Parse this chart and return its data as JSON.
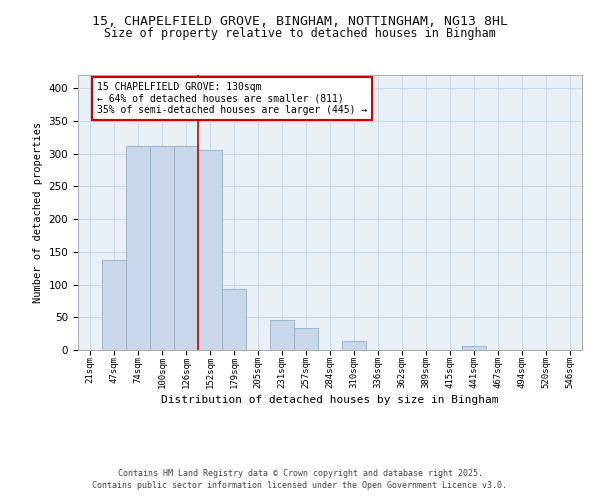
{
  "title_line1": "15, CHAPELFIELD GROVE, BINGHAM, NOTTINGHAM, NG13 8HL",
  "title_line2": "Size of property relative to detached houses in Bingham",
  "xlabel": "Distribution of detached houses by size in Bingham",
  "ylabel": "Number of detached properties",
  "bar_color": "#c8d8ea",
  "bar_edgecolor": "#8ab0cc",
  "grid_color": "#c8d8e8",
  "background_color": "#eaf0f8",
  "bin_labels": [
    "21sqm",
    "47sqm",
    "74sqm",
    "100sqm",
    "126sqm",
    "152sqm",
    "179sqm",
    "205sqm",
    "231sqm",
    "257sqm",
    "284sqm",
    "310sqm",
    "336sqm",
    "362sqm",
    "389sqm",
    "415sqm",
    "441sqm",
    "467sqm",
    "494sqm",
    "520sqm",
    "546sqm"
  ],
  "bar_heights": [
    0,
    138,
    311,
    311,
    311,
    305,
    93,
    0,
    46,
    33,
    0,
    14,
    0,
    0,
    0,
    0,
    6,
    0,
    0,
    0,
    0
  ],
  "property_line_x": 4.5,
  "annotation_text": "15 CHAPELFIELD GROVE: 130sqm\n← 64% of detached houses are smaller (811)\n35% of semi-detached houses are larger (445) →",
  "annotation_box_color": "#ffffff",
  "annotation_border_color": "#cc0000",
  "vline_color": "#cc0000",
  "ylim": [
    0,
    420
  ],
  "yticks": [
    0,
    50,
    100,
    150,
    200,
    250,
    300,
    350,
    400
  ],
  "footer_line1": "Contains HM Land Registry data © Crown copyright and database right 2025.",
  "footer_line2": "Contains public sector information licensed under the Open Government Licence v3.0."
}
